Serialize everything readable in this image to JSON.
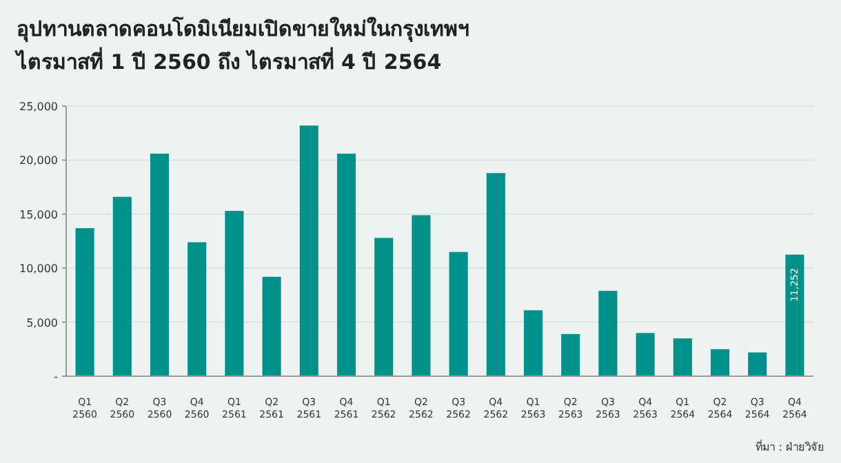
{
  "chart_data": {
    "type": "bar",
    "title": "อุปทานตลาดคอนโดมิเนียมเปิดขายใหม่ในกรุงเทพฯ",
    "subtitle": "ไตรมาสที่ 1 ปี 2560 ถึง ไตรมาสที่ 4 ปี 2564",
    "categories": [
      "Q1 2560",
      "Q2 2560",
      "Q3 2560",
      "Q4 2560",
      "Q1 2561",
      "Q2 2561",
      "Q3 2561",
      "Q4 2561",
      "Q1 2562",
      "Q2 2562",
      "Q3 2562",
      "Q4 2562",
      "Q1 2563",
      "Q2 2563",
      "Q3 2563",
      "Q4 2563",
      "Q1 2564",
      "Q2 2564",
      "Q3 2564",
      "Q4 2564"
    ],
    "values": [
      13700,
      16600,
      20600,
      12400,
      15300,
      9200,
      23200,
      20600,
      12800,
      14900,
      11500,
      18800,
      6100,
      3900,
      7900,
      4000,
      3500,
      2500,
      2200,
      11252
    ],
    "value_labels": [
      null,
      null,
      null,
      null,
      null,
      null,
      null,
      null,
      null,
      null,
      null,
      null,
      null,
      null,
      null,
      null,
      null,
      null,
      null,
      "11,252"
    ],
    "color": "#00928a",
    "ylim": [
      0,
      25000
    ],
    "yticks": [
      {
        "value": 0,
        "label": "-"
      },
      {
        "value": 5000,
        "label": "5,000"
      },
      {
        "value": 10000,
        "label": "10,000"
      },
      {
        "value": 15000,
        "label": "15,000"
      },
      {
        "value": 20000,
        "label": "20,000"
      },
      {
        "value": 25000,
        "label": "25,000"
      }
    ],
    "grid": "y",
    "annotations": [
      "ที่มา : ฝ่ายวิจัย"
    ]
  }
}
